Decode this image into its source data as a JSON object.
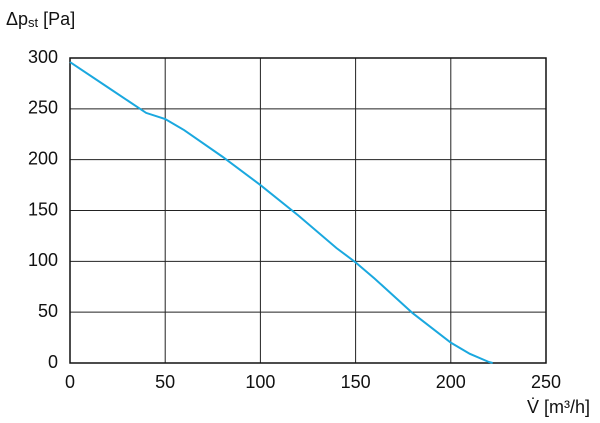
{
  "chart_data": {
    "type": "line",
    "y_label": "Δp",
    "y_label_sub": "st",
    "y_label_unit": "[Pa]",
    "x_label": "V̇ [m³/h]",
    "x": [
      0,
      20,
      40,
      50,
      60,
      80,
      100,
      120,
      140,
      150,
      160,
      180,
      200,
      210,
      220,
      222
    ],
    "series": [
      {
        "color": "#1aa8df",
        "values": [
          296,
          271,
          246,
          240,
          229,
          203,
          175,
          145,
          113,
          99,
          83,
          49,
          20,
          9,
          1,
          0
        ]
      }
    ],
    "xlim": [
      0,
      250
    ],
    "xticks": [
      0,
      50,
      100,
      150,
      200,
      250
    ],
    "ylim": [
      0,
      300
    ],
    "yticks": [
      0,
      50,
      100,
      150,
      200,
      250,
      300
    ],
    "grid": true
  }
}
